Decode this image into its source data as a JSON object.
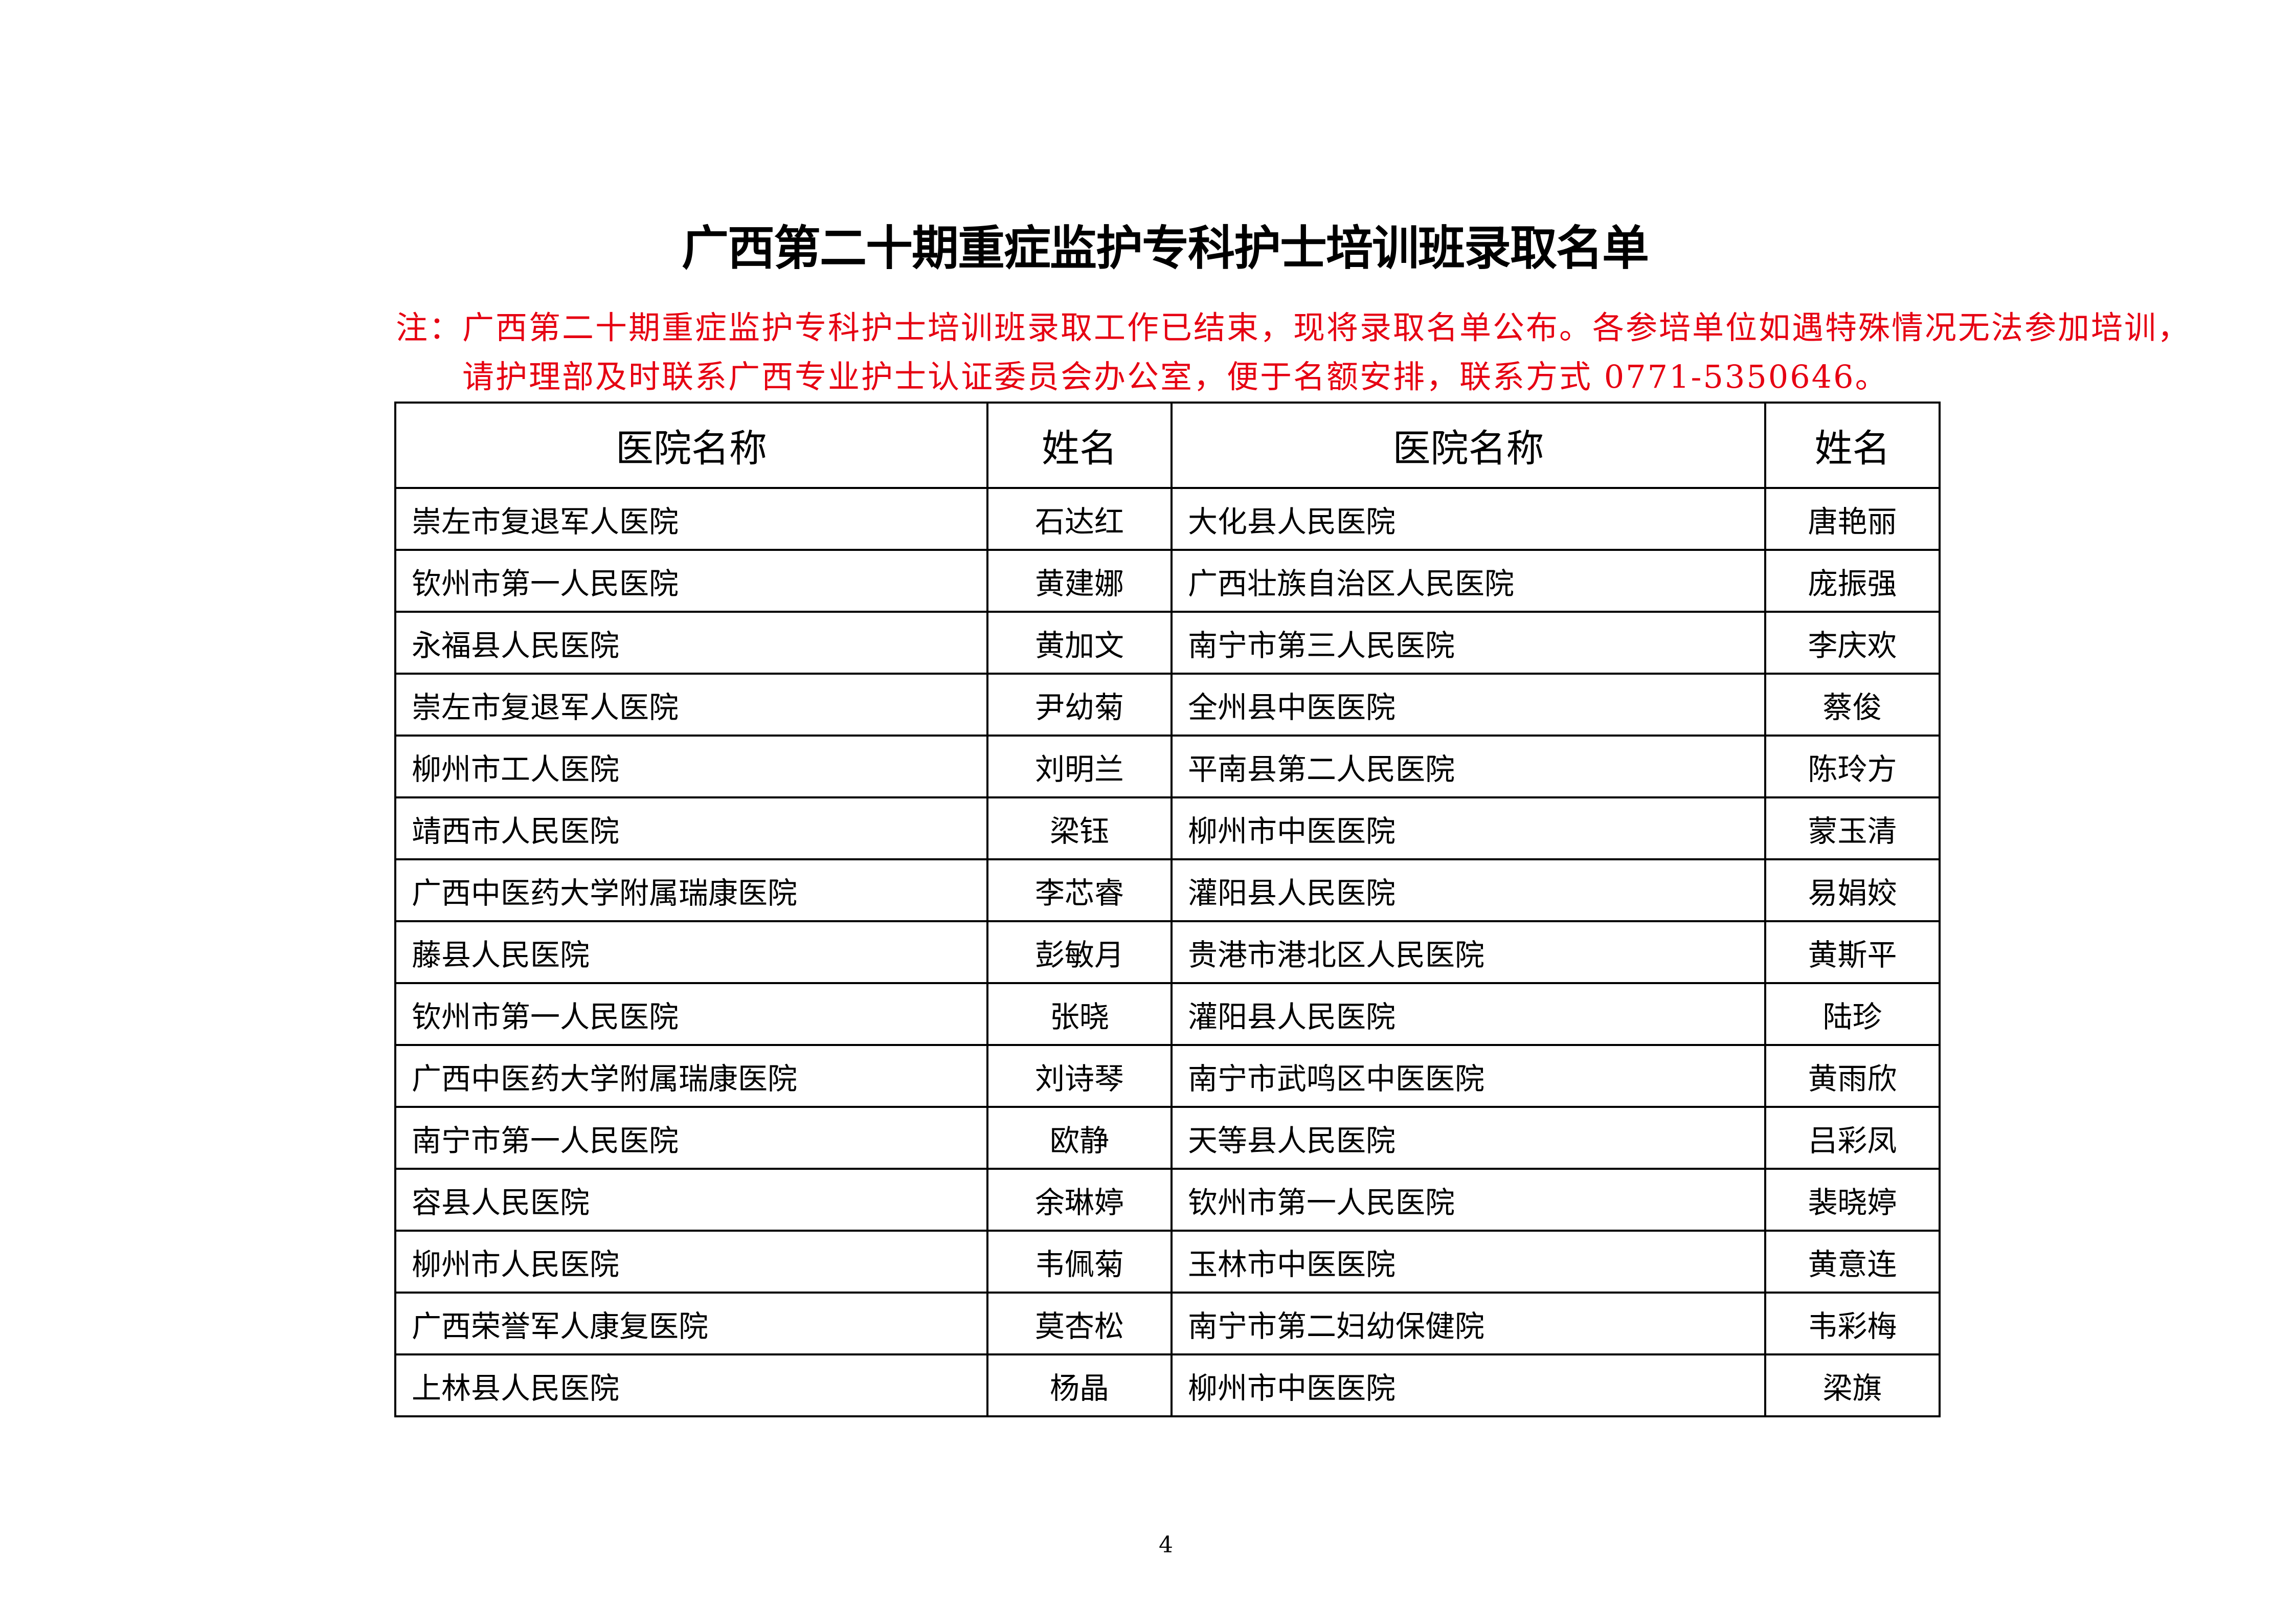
{
  "document": {
    "title": "广西第二十期重症监护专科护士培训班录取名单",
    "note_line1": "注：广西第二十期重症监护专科护士培训班录取工作已结束，现将录取名单公布。各参培单位如遇特殊情况无法参加培训，",
    "note_line2": "请护理部及时联系广西专业护士认证委员会办公室，便于名额安排，联系方式 0771-5350646。",
    "note_color": "#e60012",
    "page_number": "4"
  },
  "table": {
    "headers": [
      "医院名称",
      "姓名",
      "医院名称",
      "姓名"
    ],
    "rows": [
      [
        "崇左市复退军人医院",
        "石达红",
        "大化县人民医院",
        "唐艳丽"
      ],
      [
        "钦州市第一人民医院",
        "黄建娜",
        "广西壮族自治区人民医院",
        "庞振强"
      ],
      [
        "永福县人民医院",
        "黄加文",
        "南宁市第三人民医院",
        "李庆欢"
      ],
      [
        "崇左市复退军人医院",
        "尹幼菊",
        "全州县中医医院",
        "蔡俊"
      ],
      [
        "柳州市工人医院",
        "刘明兰",
        "平南县第二人民医院",
        "陈玲方"
      ],
      [
        "靖西市人民医院",
        "梁钰",
        "柳州市中医医院",
        "蒙玉清"
      ],
      [
        "广西中医药大学附属瑞康医院",
        "李芯睿",
        "灌阳县人民医院",
        "易娟姣"
      ],
      [
        "藤县人民医院",
        "彭敏月",
        "贵港市港北区人民医院",
        "黄斯平"
      ],
      [
        "钦州市第一人民医院",
        "张晓",
        "灌阳县人民医院",
        "陆珍"
      ],
      [
        "广西中医药大学附属瑞康医院",
        "刘诗琴",
        "南宁市武鸣区中医医院",
        "黄雨欣"
      ],
      [
        "南宁市第一人民医院",
        "欧静",
        "天等县人民医院",
        "吕彩凤"
      ],
      [
        "容县人民医院",
        "余琳婷",
        "钦州市第一人民医院",
        "裴晓婷"
      ],
      [
        "柳州市人民医院",
        "韦佩菊",
        "玉林市中医医院",
        "黄意连"
      ],
      [
        "广西荣誉军人康复医院",
        "莫杏松",
        "南宁市第二妇幼保健院",
        "韦彩梅"
      ],
      [
        "上林县人民医院",
        "杨晶",
        "柳州市中医医院",
        "梁旗"
      ]
    ]
  }
}
